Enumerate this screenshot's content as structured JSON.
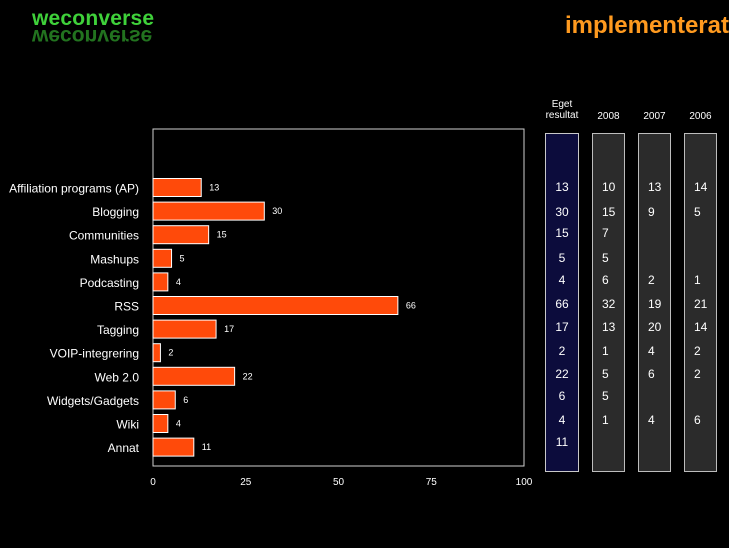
{
  "brand": {
    "logo_text": "weconverse"
  },
  "header": {
    "title": "implementerat"
  },
  "chart_data": {
    "type": "bar",
    "orientation": "horizontal",
    "categories": [
      "Affiliation programs (AP)",
      "Blogging",
      "Communities",
      "Mashups",
      "Podcasting",
      "RSS",
      "Tagging",
      "VOIP-integrering",
      "Web 2.0",
      "Widgets/Gadgets",
      "Wiki",
      "Annat"
    ],
    "values": [
      13,
      30,
      15,
      5,
      4,
      66,
      17,
      2,
      22,
      6,
      4,
      11
    ],
    "xlim": [
      0,
      100
    ],
    "xticks": [
      0,
      25,
      50,
      75,
      100
    ],
    "bar_color": "#ff4a0a",
    "grid": false
  },
  "table": {
    "columns": [
      {
        "header": "Eget resultat",
        "values": [
          "13",
          "30",
          "15",
          "5",
          "4",
          "66",
          "17",
          "2",
          "22",
          "6",
          "4",
          "11"
        ]
      },
      {
        "header": "2008",
        "values": [
          "10",
          "15",
          "7",
          "5",
          "6",
          "32",
          "13",
          "1",
          "5",
          "5",
          "1",
          ""
        ]
      },
      {
        "header": "2007",
        "values": [
          "13",
          "9",
          "",
          "",
          "2",
          "19",
          "20",
          "4",
          "6",
          "",
          "4",
          ""
        ]
      },
      {
        "header": "2006",
        "values": [
          "14",
          "5",
          "",
          "",
          "1",
          "21",
          "14",
          "2",
          "2",
          "",
          "6",
          ""
        ]
      }
    ]
  }
}
